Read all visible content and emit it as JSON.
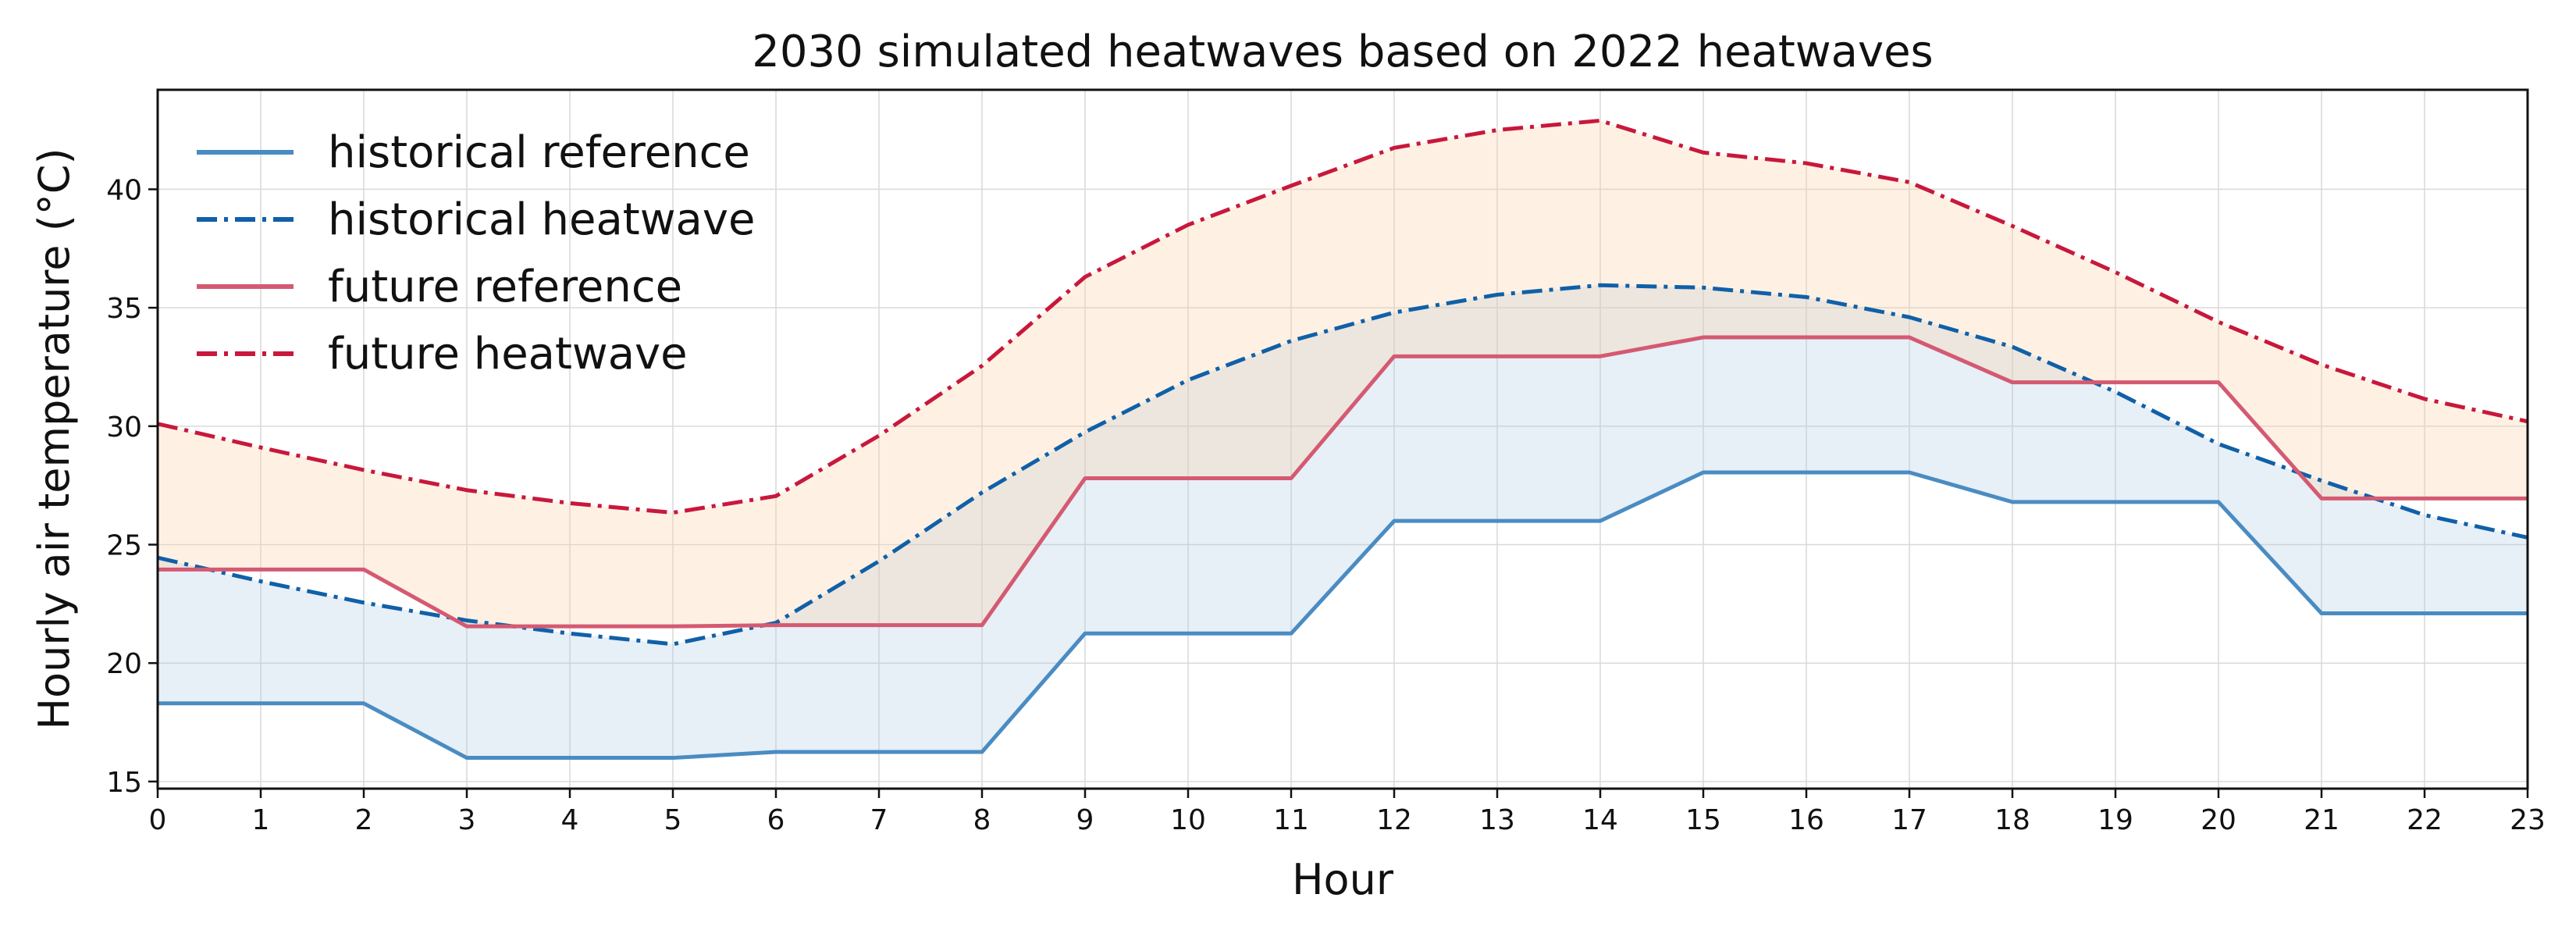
{
  "chart_data": {
    "type": "line",
    "title": "2030 simulated heatwaves based on 2022 heatwaves",
    "xlabel": "Hour",
    "ylabel": "Hourly air temperature (°C)",
    "x": [
      0,
      1,
      2,
      3,
      4,
      5,
      6,
      7,
      8,
      9,
      10,
      11,
      12,
      13,
      14,
      15,
      16,
      17,
      18,
      19,
      20,
      21,
      22,
      23
    ],
    "xticks": [
      "0",
      "1",
      "2",
      "3",
      "4",
      "5",
      "6",
      "7",
      "8",
      "9",
      "10",
      "11",
      "12",
      "13",
      "14",
      "15",
      "16",
      "17",
      "18",
      "19",
      "20",
      "21",
      "22",
      "23"
    ],
    "yticks": [
      15,
      20,
      25,
      30,
      35,
      40
    ],
    "xlim": [
      0,
      23
    ],
    "ylim": [
      14.7,
      44.2
    ],
    "grid": true,
    "legend_position": "top-left",
    "series": [
      {
        "name": "historical reference",
        "color": "#4a8cc2",
        "style": "solid",
        "values": [
          18.3,
          18.3,
          18.3,
          16.0,
          16.0,
          16.0,
          16.25,
          16.25,
          16.25,
          21.25,
          21.25,
          21.25,
          26.0,
          26.0,
          26.0,
          28.05,
          28.05,
          28.05,
          26.8,
          26.8,
          26.8,
          22.1,
          22.1,
          22.1
        ]
      },
      {
        "name": "historical heatwave",
        "color": "#1060a8",
        "style": "dashdot",
        "values": [
          24.45,
          23.45,
          22.55,
          21.8,
          21.25,
          20.8,
          21.7,
          24.3,
          27.2,
          29.75,
          31.95,
          33.6,
          34.8,
          35.55,
          35.95,
          35.85,
          35.45,
          34.6,
          33.35,
          31.45,
          29.25,
          27.7,
          26.25,
          25.3
        ]
      },
      {
        "name": "future reference",
        "color": "#d45a72",
        "style": "solid",
        "values": [
          23.95,
          23.95,
          23.95,
          21.55,
          21.55,
          21.55,
          21.6,
          21.6,
          21.6,
          27.8,
          27.8,
          27.8,
          32.95,
          32.95,
          32.95,
          33.75,
          33.75,
          33.75,
          31.85,
          31.85,
          31.85,
          26.95,
          26.95,
          26.95
        ]
      },
      {
        "name": "future heatwave",
        "color": "#c8183c",
        "style": "dashdot",
        "values": [
          30.1,
          29.1,
          28.15,
          27.3,
          26.75,
          26.35,
          27.05,
          29.6,
          32.55,
          36.3,
          38.5,
          40.15,
          41.75,
          42.5,
          42.9,
          41.55,
          41.1,
          40.3,
          38.45,
          36.5,
          34.4,
          32.6,
          31.15,
          30.2
        ]
      }
    ],
    "bands": [
      {
        "between": [
          "historical reference",
          "historical heatwave"
        ],
        "color": "#a9c4e4",
        "opacity": 0.28
      },
      {
        "between": [
          "future reference",
          "future heatwave"
        ],
        "color": "#fbcfa6",
        "opacity": 0.3
      }
    ]
  }
}
